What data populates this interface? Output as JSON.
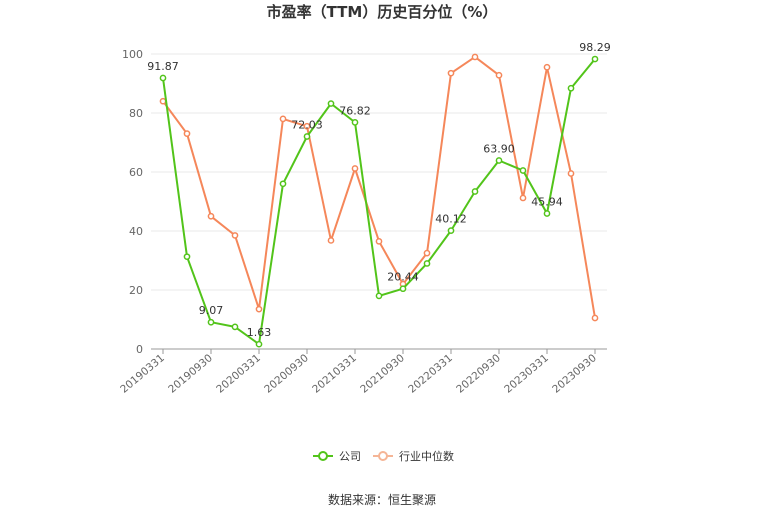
{
  "chart_data": {
    "type": "line",
    "title": "市盈率（TTM）历史百分位（%）",
    "xlabel": "",
    "ylabel": "",
    "ylim": [
      0,
      100
    ],
    "yticks": [
      0,
      20,
      40,
      60,
      80,
      100
    ],
    "grid": true,
    "legend_position": "bottom-center",
    "x": [
      "20190331",
      "20190630",
      "20190930",
      "20191231",
      "20200331",
      "20200630",
      "20200930",
      "20201231",
      "20210331",
      "20210630",
      "20210930",
      "20211231",
      "20220331",
      "20220630",
      "20220930",
      "20221231",
      "20230331",
      "20230630",
      "20230930"
    ],
    "x_tick_labels": [
      "20190331",
      "20190930",
      "20200331",
      "20200930",
      "20210331",
      "20210930",
      "20220331",
      "20220930",
      "20230331",
      "20230930"
    ],
    "series": [
      {
        "name": "公司",
        "color": "#52c41a",
        "values": [
          91.87,
          31.3,
          9.07,
          7.5,
          1.63,
          56.0,
          72.03,
          83.2,
          76.82,
          18.0,
          20.44,
          29.0,
          40.12,
          53.4,
          63.9,
          60.5,
          45.94,
          88.4,
          98.29
        ]
      },
      {
        "name": "行业中位数",
        "color": "#f5875a",
        "values": [
          84.0,
          73.0,
          45.0,
          38.5,
          13.5,
          78.0,
          75.5,
          36.8,
          61.2,
          36.5,
          22.0,
          32.5,
          93.5,
          99.0,
          92.8,
          51.2,
          95.5,
          59.5,
          10.5
        ]
      }
    ],
    "annotations": [
      {
        "series": 0,
        "index": 0,
        "text": "91.87"
      },
      {
        "series": 0,
        "index": 2,
        "text": "9.07"
      },
      {
        "series": 0,
        "index": 4,
        "text": "1.63"
      },
      {
        "series": 0,
        "index": 6,
        "text": "72.03"
      },
      {
        "series": 0,
        "index": 8,
        "text": "76.82"
      },
      {
        "series": 0,
        "index": 10,
        "text": "20.44"
      },
      {
        "series": 0,
        "index": 12,
        "text": "40.12"
      },
      {
        "series": 0,
        "index": 14,
        "text": "63.90"
      },
      {
        "series": 0,
        "index": 16,
        "text": "45.94"
      },
      {
        "series": 0,
        "index": 18,
        "text": "98.29"
      }
    ]
  },
  "source_text": "数据来源：恒生聚源"
}
